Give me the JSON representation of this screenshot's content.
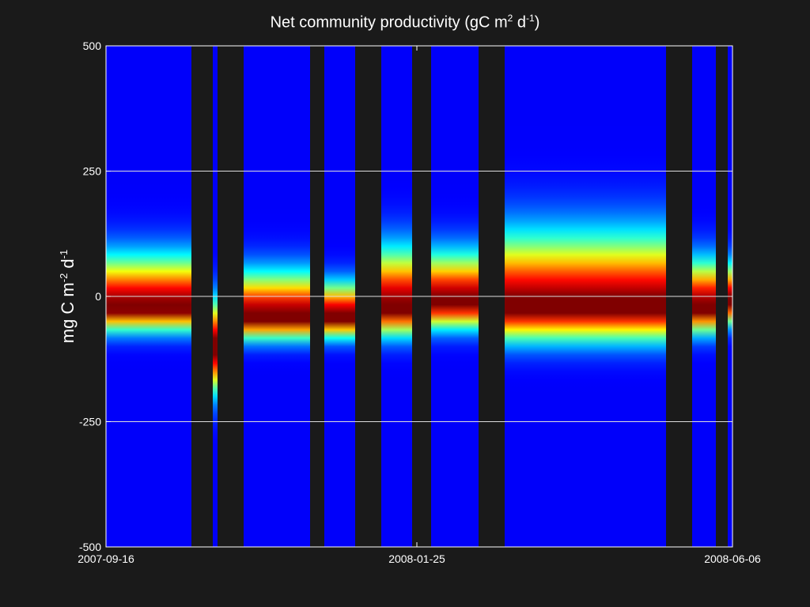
{
  "chart_data": {
    "type": "heatmap",
    "title": {
      "main": "Net community productivity (gC m",
      "sup1": "2",
      "mid": " d",
      "sup2": "-1",
      "end": ")"
    },
    "ylabel": {
      "main": "mg C m",
      "sup1": "-2",
      "mid": " d",
      "sup2": "-1"
    },
    "ylim": [
      -500,
      500
    ],
    "yticks": [
      "500",
      "250",
      "0",
      "-250",
      "-500"
    ],
    "ytick_values": [
      500,
      250,
      0,
      -250,
      -500
    ],
    "xlim": [
      "2007-09-16",
      "2008-06-06"
    ],
    "xticks": [
      "2007-09-16",
      "2008-01-25",
      "2008-06-06"
    ],
    "grid": {
      "y": true,
      "x": false
    },
    "colormap": "jet",
    "colors": {
      "background": "#1a1a1a",
      "plot_background": "#1a1a1a",
      "grid": "#dddddd",
      "axis": "#ffffff"
    },
    "data_gaps": [
      [
        "2007-10-22",
        "2007-10-31"
      ],
      [
        "2007-11-02",
        "2007-11-13"
      ],
      [
        "2007-12-11",
        "2007-12-17"
      ],
      [
        "2007-12-30",
        "2008-01-10"
      ],
      [
        "2008-01-23",
        "2008-01-31"
      ],
      [
        "2008-02-20",
        "2008-03-02"
      ],
      [
        "2008-05-09",
        "2008-05-20"
      ],
      [
        "2008-05-30",
        "2008-06-04"
      ]
    ],
    "segments": [
      {
        "start": "2007-09-16",
        "end": "2007-10-22",
        "center": -20,
        "spread": 32,
        "red_width": 14,
        "bulge": 55
      },
      {
        "start": "2007-10-31",
        "end": "2007-11-02",
        "center": -100,
        "spread": 60,
        "red_width": 30,
        "bulge": 0
      },
      {
        "start": "2007-11-13",
        "end": "2007-12-11",
        "center": -40,
        "spread": 30,
        "red_width": 12,
        "bulge": 45
      },
      {
        "start": "2007-12-17",
        "end": "2007-12-30",
        "center": -40,
        "spread": 28,
        "red_width": 14,
        "bulge": 25
      },
      {
        "start": "2008-01-10",
        "end": "2008-01-23",
        "center": -20,
        "spread": 38,
        "red_width": 20,
        "bulge": 60
      },
      {
        "start": "2008-01-31",
        "end": "2008-02-20",
        "center": -10,
        "spread": 35,
        "red_width": 16,
        "bulge": 45
      },
      {
        "start": "2008-03-02",
        "end": "2008-05-09",
        "center": -20,
        "spread": 45,
        "red_width": 22,
        "bulge": 80
      },
      {
        "start": "2008-05-20",
        "end": "2008-05-30",
        "center": -20,
        "spread": 35,
        "red_width": 18,
        "bulge": 40
      },
      {
        "start": "2008-06-04",
        "end": "2008-06-06",
        "center": -10,
        "spread": 30,
        "red_width": 14,
        "bulge": 30
      }
    ]
  }
}
